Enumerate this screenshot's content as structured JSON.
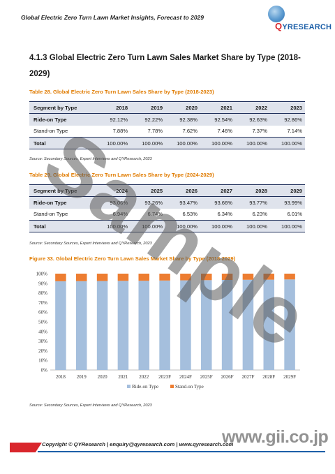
{
  "header": {
    "running_title": "Global Electric Zero Turn Lawn Market Insights, Forecast to 2029",
    "logo_q": "Q",
    "logo_y": "Y",
    "logo_rest": "RESEARCH"
  },
  "section": {
    "heading": "4.1.3  Global Electric Zero Turn Lawn Sales Market Share by Type (2018-2029)"
  },
  "table1": {
    "title": "Table 28.  Global Electric Zero Turn Lawn Sales Share by Type (2018-2023)",
    "columns": [
      "Segment by Type",
      "2018",
      "2019",
      "2020",
      "2021",
      "2022",
      "2023"
    ],
    "rows": [
      [
        "Ride-on Type",
        "92.12%",
        "92.22%",
        "92.38%",
        "92.54%",
        "92.63%",
        "92.86%"
      ],
      [
        "Stand-on Type",
        "7.88%",
        "7.78%",
        "7.62%",
        "7.46%",
        "7.37%",
        "7.14%"
      ],
      [
        "Total",
        "100.00%",
        "100.00%",
        "100.00%",
        "100.00%",
        "100.00%",
        "100.00%"
      ]
    ],
    "source": "Source: Secondary Sources, Expert Interviews and QYResearch, 2023"
  },
  "table2": {
    "title": "Table 29.  Global Electric Zero Turn Lawn Sales Share by Type (2024-2029)",
    "columns": [
      "Segment by Type",
      "2024",
      "2025",
      "2026",
      "2027",
      "2028",
      "2029"
    ],
    "rows": [
      [
        "Ride-on Type",
        "93.06%",
        "93.26%",
        "93.47%",
        "93.66%",
        "93.77%",
        "93.99%"
      ],
      [
        "Stand-on Type",
        "6.94%",
        "6.74%",
        "6.53%",
        "6.34%",
        "6.23%",
        "6.01%"
      ],
      [
        "Total",
        "100.00%",
        "100.00%",
        "100.00%",
        "100.00%",
        "100.00%",
        "100.00%"
      ]
    ],
    "source": "Source: Secondary Sources, Expert Interviews and QYResearch, 2023"
  },
  "figure": {
    "title": "Figure 33.  Global Electric Zero Turn Lawn Sales Market Share by Type (2018-2029)",
    "source": "Source: Secondary Sources, Expert Interviews and QYResearch, 2023"
  },
  "chart_data": {
    "type": "bar",
    "stacked": true,
    "categories": [
      "2018",
      "2019",
      "2020",
      "2021",
      "2022",
      "2023F",
      "2024F",
      "2025F",
      "2026F",
      "2027F",
      "2028F",
      "2029F"
    ],
    "series": [
      {
        "name": "Ride-on Type",
        "color": "#a5bfdd",
        "values": [
          92.12,
          92.22,
          92.38,
          92.54,
          92.63,
          92.86,
          93.06,
          93.26,
          93.47,
          93.66,
          93.77,
          93.99
        ]
      },
      {
        "name": "Stand-on Type",
        "color": "#ed7d31",
        "values": [
          7.88,
          7.78,
          7.62,
          7.46,
          7.37,
          7.14,
          6.94,
          6.74,
          6.53,
          6.34,
          6.23,
          6.01
        ]
      }
    ],
    "yticks": [
      "0%",
      "10%",
      "20%",
      "30%",
      "40%",
      "50%",
      "60%",
      "70%",
      "80%",
      "90%",
      "100%"
    ],
    "ylim": [
      0,
      100
    ],
    "grid": false,
    "legend": "bottom"
  },
  "watermark": {
    "text": "Sample"
  },
  "footer": {
    "copyright": "Copyright © QYResearch | enquiry@qyresearch.com | www.qyresearch.com",
    "site": "www.gii.co.jp"
  }
}
